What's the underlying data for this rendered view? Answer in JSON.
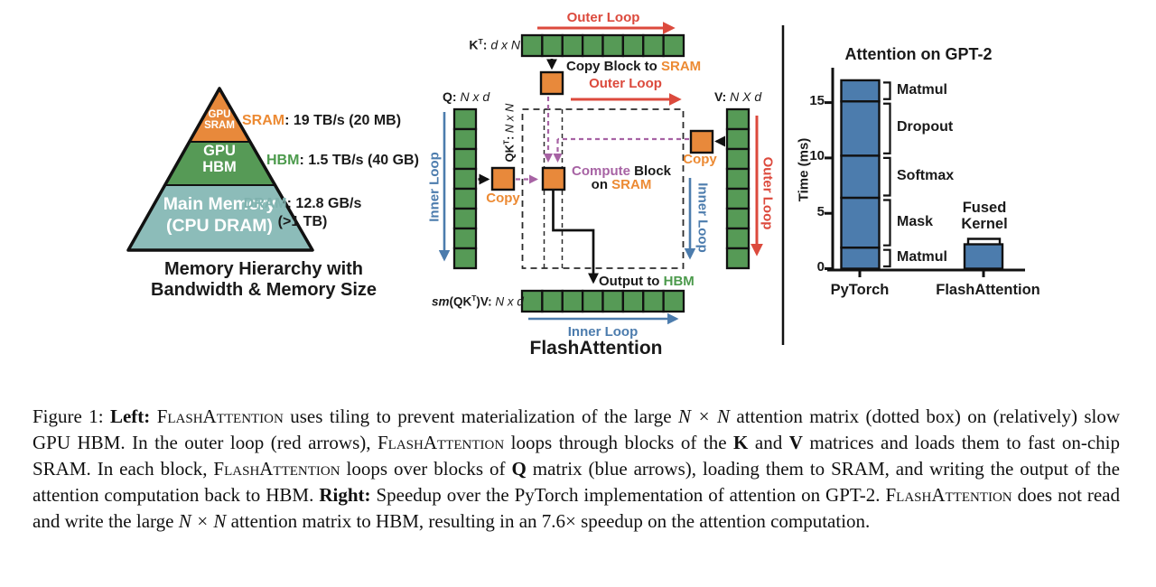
{
  "left_panel": {
    "pyramid": {
      "levels": [
        {
          "line1": "GPU",
          "line2": "SRAM",
          "color": "#E8893B",
          "spec": [
            {
              "t": "SRAM",
              "c": "orange"
            },
            {
              "t": ": 19 TB/s (20 MB)"
            }
          ]
        },
        {
          "line1": "GPU",
          "line2": "HBM",
          "color": "#569A56",
          "spec": [
            {
              "t": "HBM",
              "c": "green"
            },
            {
              "t": ": 1.5 TB/s (40 GB)"
            }
          ]
        },
        {
          "line1": "Main Memory",
          "line2": "(CPU DRAM)",
          "color": "#8CBCB9",
          "spec": [
            {
              "t": "DRAM",
              "c": "teal"
            },
            {
              "t": ": 12.8 GB/s"
            }
          ],
          "spec_line2": "(>1 TB)"
        }
      ],
      "caption_line1": "Memory Hierarchy with",
      "caption_line2": "Bandwidth & Memory Size"
    }
  },
  "middle_panel": {
    "outer_loop_top": "Outer Loop",
    "outer_loop_mid": "Outer Loop",
    "outer_loop_right": "Outer Loop",
    "inner_loop_left": "Inner Loop",
    "inner_loop_right": "Inner Loop",
    "inner_loop_bottom": "Inner Loop",
    "kt_label": [
      {
        "t": "K",
        "c": "b"
      },
      {
        "t": "T",
        "c": "b sup"
      },
      {
        "t": ": ",
        "c": "b"
      },
      {
        "t": "d x N",
        "c": "i"
      }
    ],
    "q_label": [
      {
        "t": "Q: ",
        "c": "b"
      },
      {
        "t": "N x d",
        "c": "i"
      }
    ],
    "v_label": [
      {
        "t": "V: ",
        "c": "b"
      },
      {
        "t": "N X d",
        "c": "i"
      }
    ],
    "qkt_label": [
      {
        "t": "QK",
        "c": "b"
      },
      {
        "t": "T",
        "c": "b sup"
      },
      {
        "t": ": ",
        "c": "b"
      },
      {
        "t": "N x N",
        "c": "i"
      }
    ],
    "output_label": [
      {
        "t": "sm",
        "c": "b i"
      },
      {
        "t": "(QK",
        "c": "b"
      },
      {
        "t": "T",
        "c": "b sup"
      },
      {
        "t": ")V: ",
        "c": "b"
      },
      {
        "t": "N x d",
        "c": "i"
      }
    ],
    "copy_block_to_sram": [
      {
        "t": "Copy Block to "
      },
      {
        "t": "SRAM",
        "c": "orange"
      }
    ],
    "copy_label_q": "Copy",
    "copy_label_v": "Copy",
    "compute_line1": [
      {
        "t": "Compute",
        "c": "purple"
      },
      {
        "t": " Block"
      }
    ],
    "compute_line2": [
      {
        "t": "on "
      },
      {
        "t": "SRAM",
        "c": "orange"
      }
    ],
    "output_to_hbm": [
      {
        "t": "Output to "
      },
      {
        "t": "HBM",
        "c": "green"
      }
    ],
    "diagram_title": "FlashAttention"
  },
  "chart_data": {
    "type": "bar",
    "title": "Attention on GPT-2",
    "ylabel": "Time (ms)",
    "yticks": [
      0,
      5,
      10,
      15
    ],
    "ylim": [
      0,
      17.5
    ],
    "categories": [
      "PyTorch",
      "FlashAttention"
    ],
    "bar_color": "#4C7CAD",
    "legend_position": "none",
    "grid": false,
    "series": [
      {
        "name": "PyTorch",
        "segments": [
          {
            "label": "Matmul",
            "value": 1.9
          },
          {
            "label": "Mask",
            "value": 4.5
          },
          {
            "label": "Softmax",
            "value": 3.8
          },
          {
            "label": "Dropout",
            "value": 4.9
          },
          {
            "label": "Matmul",
            "value": 1.9
          }
        ],
        "total": 17.0
      },
      {
        "name": "FlashAttention",
        "segments": [
          {
            "label": "Fused Kernel",
            "value": 2.2
          }
        ],
        "total": 2.2
      }
    ]
  },
  "caption": {
    "segments": [
      {
        "t": "Figure 1: "
      },
      {
        "t": "Left:",
        "c": "b"
      },
      {
        "t": " "
      },
      {
        "t": "FlashAttention",
        "c": "sc"
      },
      {
        "t": " uses tiling to prevent materialization of the large "
      },
      {
        "t": "N × N",
        "c": "i"
      },
      {
        "t": " attention matrix (dotted box) on (relatively) slow GPU HBM. In the outer loop (red arrows), "
      },
      {
        "t": "FlashAttention",
        "c": "sc"
      },
      {
        "t": " loops through blocks of the "
      },
      {
        "t": "K",
        "c": "b"
      },
      {
        "t": " and "
      },
      {
        "t": "V",
        "c": "b"
      },
      {
        "t": " matrices and loads them to fast on-chip SRAM. In each block, "
      },
      {
        "t": "FlashAttention",
        "c": "sc"
      },
      {
        "t": " loops over blocks of "
      },
      {
        "t": "Q",
        "c": "b"
      },
      {
        "t": " matrix (blue arrows), loading them to SRAM, and writing the output of the attention computation back to HBM. "
      },
      {
        "t": "Right:",
        "c": "b"
      },
      {
        "t": " Speedup over the PyTorch implementation of attention on GPT-2. "
      },
      {
        "t": "FlashAttention",
        "c": "sc"
      },
      {
        "t": " does not read and write the large "
      },
      {
        "t": "N × N",
        "c": "i"
      },
      {
        "t": " attention matrix to HBM, resulting in an 7.6× speedup on the attention computation."
      }
    ]
  }
}
